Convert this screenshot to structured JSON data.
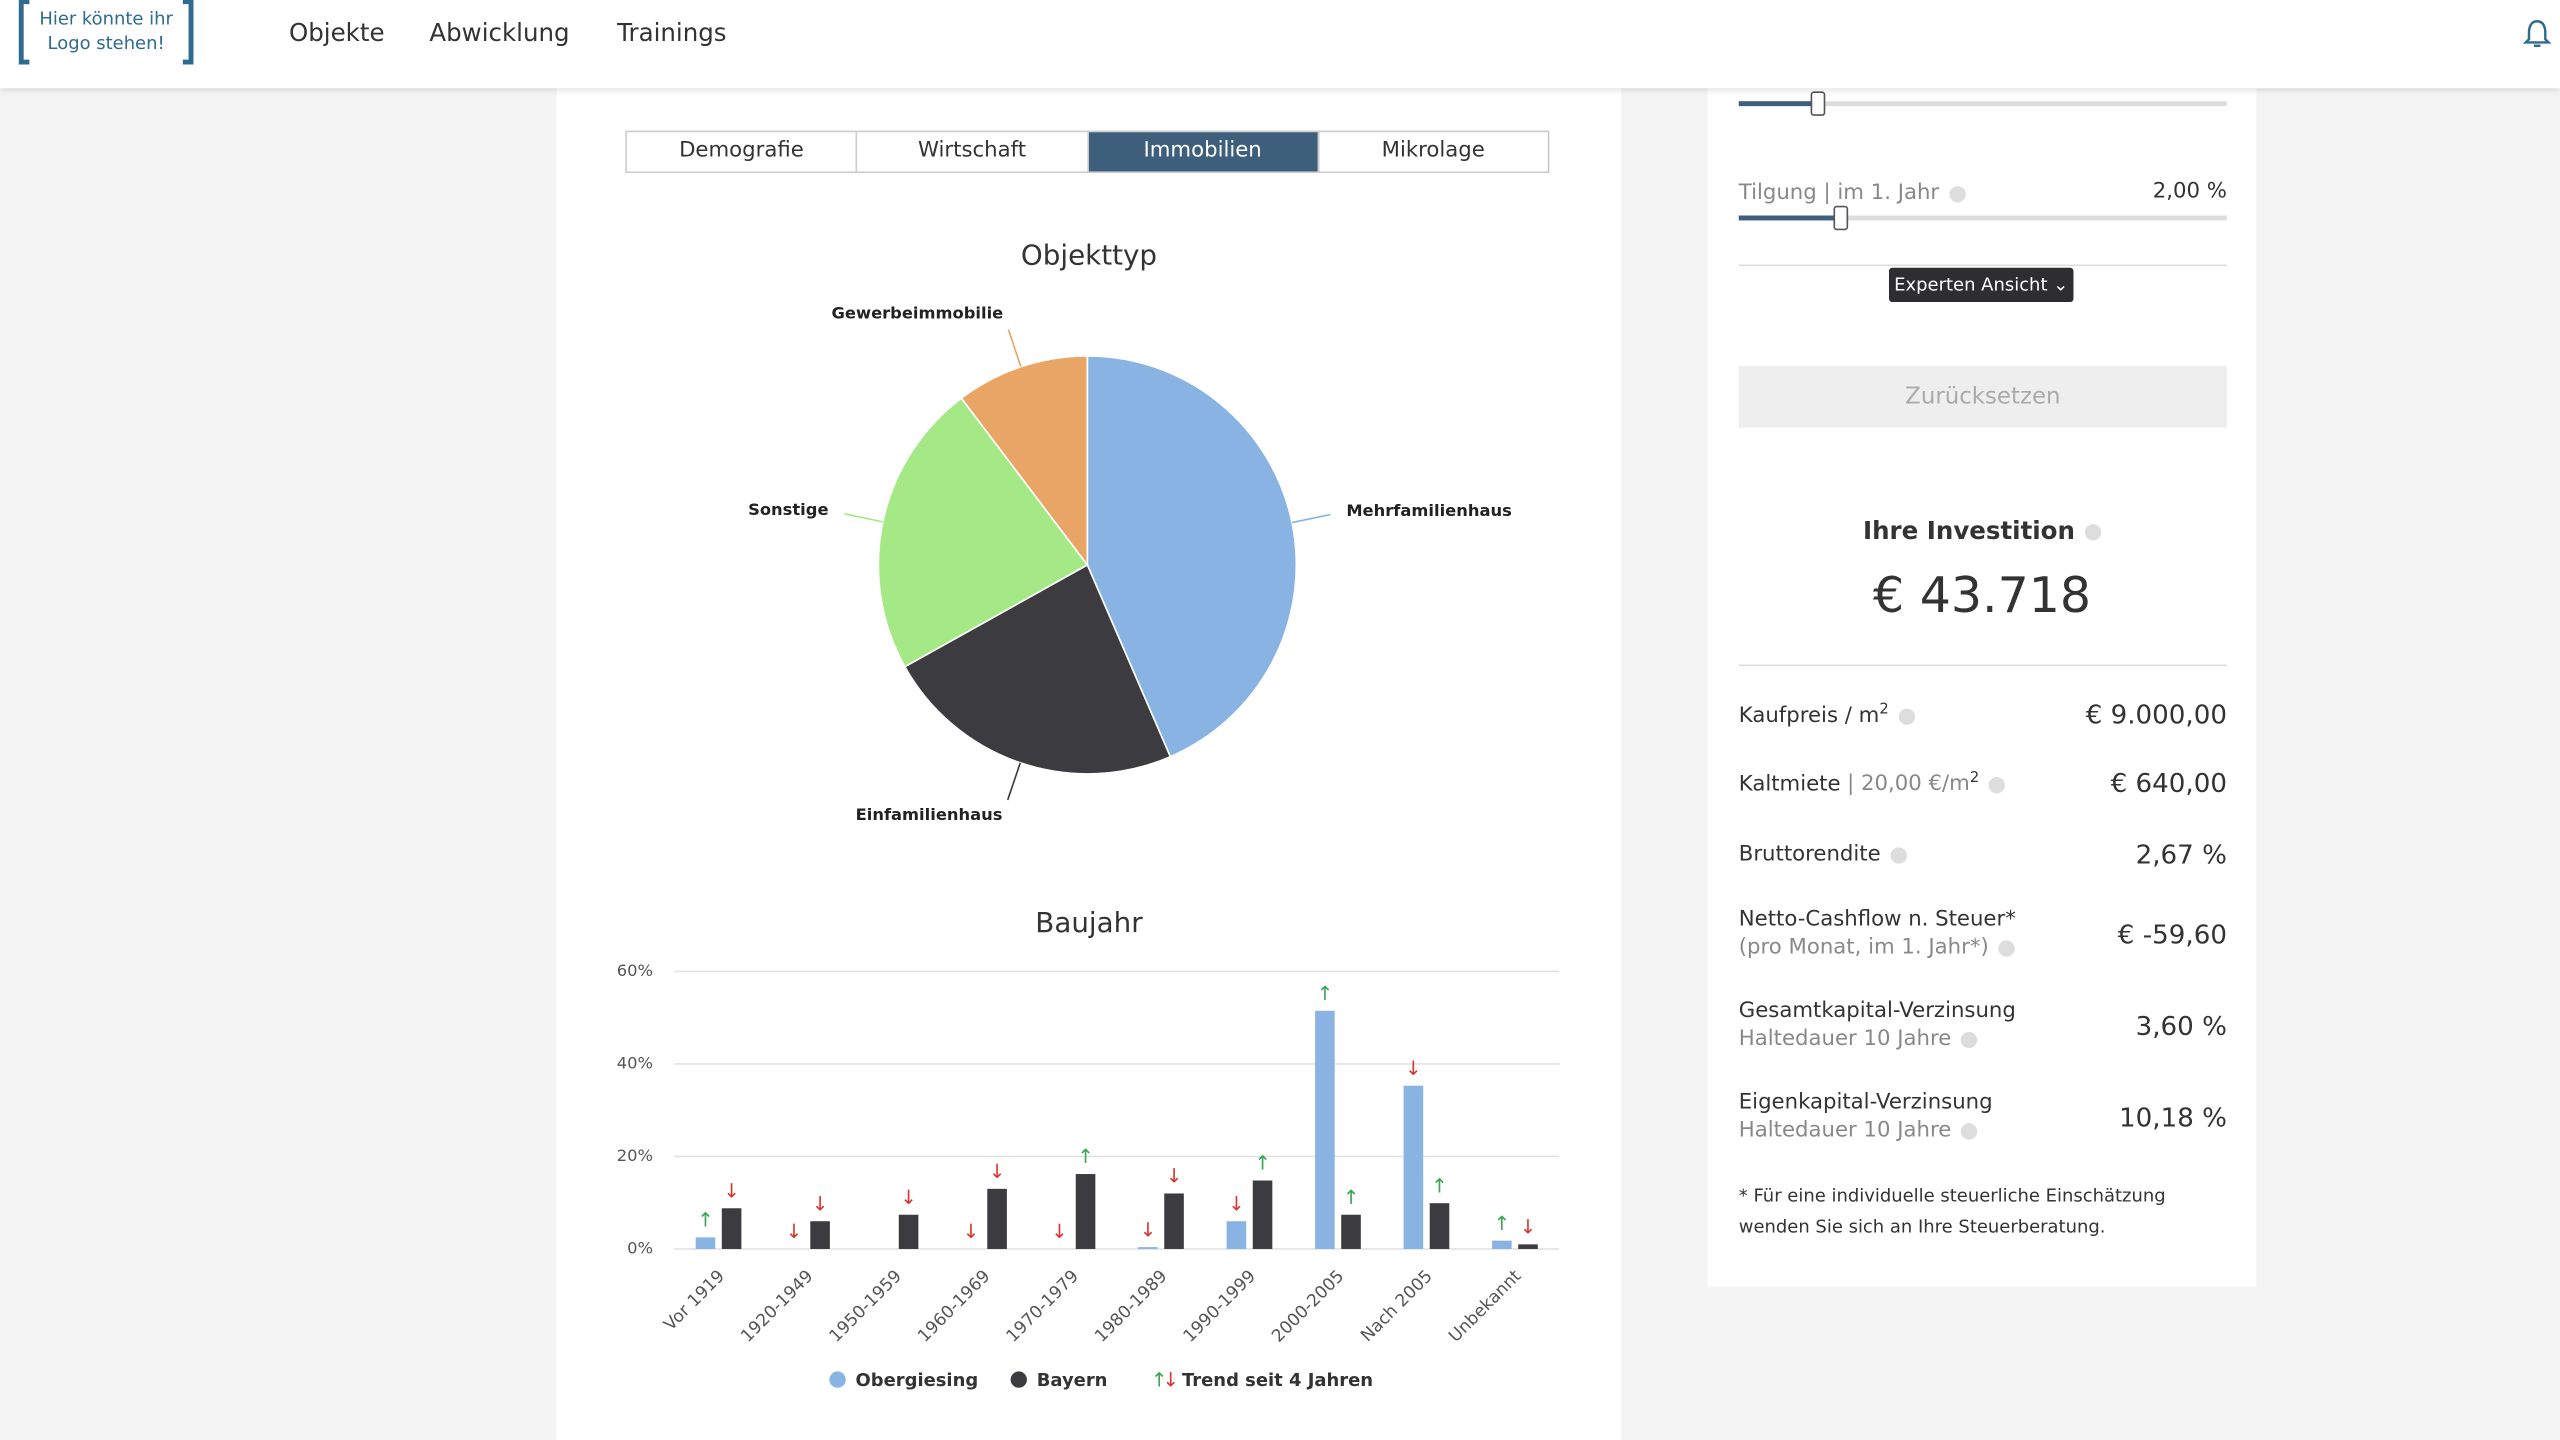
{
  "header": {
    "logo_lines": [
      "Hier könnte ihr",
      "Logo stehen!"
    ],
    "nav": [
      "Objekte",
      "Abwicklung",
      "Trainings"
    ]
  },
  "tabs": {
    "items": [
      "Demografie",
      "Wirtschaft",
      "Immobilien",
      "Mikrolage"
    ],
    "active": 2
  },
  "pie_chart": {
    "type": "pie",
    "title": "Objekttyp",
    "categories": [
      "Mehrfamilienhaus",
      "Einfamilienhaus",
      "Sonstige",
      "Gewerbeimmobilie"
    ],
    "values": [
      43.5,
      23.4,
      22.8,
      10.3
    ],
    "colors": [
      "#88b3e3",
      "#3c3c40",
      "#a4e985",
      "#e8a565"
    ]
  },
  "bar_chart": {
    "type": "bar",
    "title": "Baujahr",
    "categories": [
      "Vor 1919",
      "1920-1949",
      "1950-1959",
      "1960-1969",
      "1970-1979",
      "1980-1989",
      "1990-1999",
      "2000-2005",
      "Nach 2005",
      "Unbekannt"
    ],
    "series": [
      {
        "name": "Obergiesing",
        "color": "#88b3e3",
        "values": [
          2.5,
          0,
          0,
          0,
          0,
          0.4,
          6,
          51.5,
          35.3,
          1.8
        ],
        "trends": [
          "↑",
          "↓",
          null,
          "↓",
          "↓",
          "↓",
          "↓",
          "↑",
          "↓",
          "↑"
        ]
      },
      {
        "name": "Bayern",
        "color": "#3c3c40",
        "values": [
          8.8,
          6,
          7.4,
          13,
          16.2,
          12,
          14.8,
          7.4,
          9.9,
          1
        ],
        "trends": [
          "↓",
          "↓",
          "↓",
          "↓",
          "↑",
          "↓",
          "↑",
          "↑",
          "↑",
          "↓"
        ]
      }
    ],
    "ylim": [
      0,
      60
    ],
    "yticks": [
      {
        "value": 0,
        "label": "0%"
      },
      {
        "value": 20,
        "label": "20%"
      },
      {
        "value": 40,
        "label": "40%"
      },
      {
        "value": 60,
        "label": "60%"
      }
    ],
    "grid": true,
    "trend_symbols": [
      "↑",
      "↓"
    ],
    "trend_colors": [
      "#3aa655",
      "#d9342b"
    ],
    "trend_label": "Trend seit 4 Jahren"
  },
  "sidebar": {
    "tilgung_label": "Tilgung | im 1. Jahr",
    "tilgung_value": "2,00 %",
    "expert_button": "Experten Ansicht",
    "reset_button": "Zurücksetzen",
    "investment_title": "Ihre Investition",
    "investment_value": "€ 43.718",
    "rows": [
      {
        "label": "Kaufpreis / m",
        "sup": "2",
        "value": "€ 9.000,00"
      },
      {
        "label": "Kaltmiete",
        "detail": "| 20,00 €/m",
        "sup": "2",
        "value": "€ 640,00"
      },
      {
        "label": "Bruttorendite",
        "value": "2,67 %"
      },
      {
        "label": "Netto-Cashflow n. Steuer*",
        "sub": "(pro Monat, im 1. Jahr*)",
        "value": "€ -59,60"
      },
      {
        "label": "Gesamtkapital-Verzinsung",
        "sub": "Haltedauer 10 Jahre",
        "value": "3,60 %"
      },
      {
        "label": "Eigenkapital-Verzinsung",
        "sub": "Haltedauer 10 Jahre",
        "value": "10,18 %"
      }
    ],
    "footnote": "* Für eine individuelle steuerliche Einschätzung wenden Sie sich an Ihre Steuerberatung."
  }
}
